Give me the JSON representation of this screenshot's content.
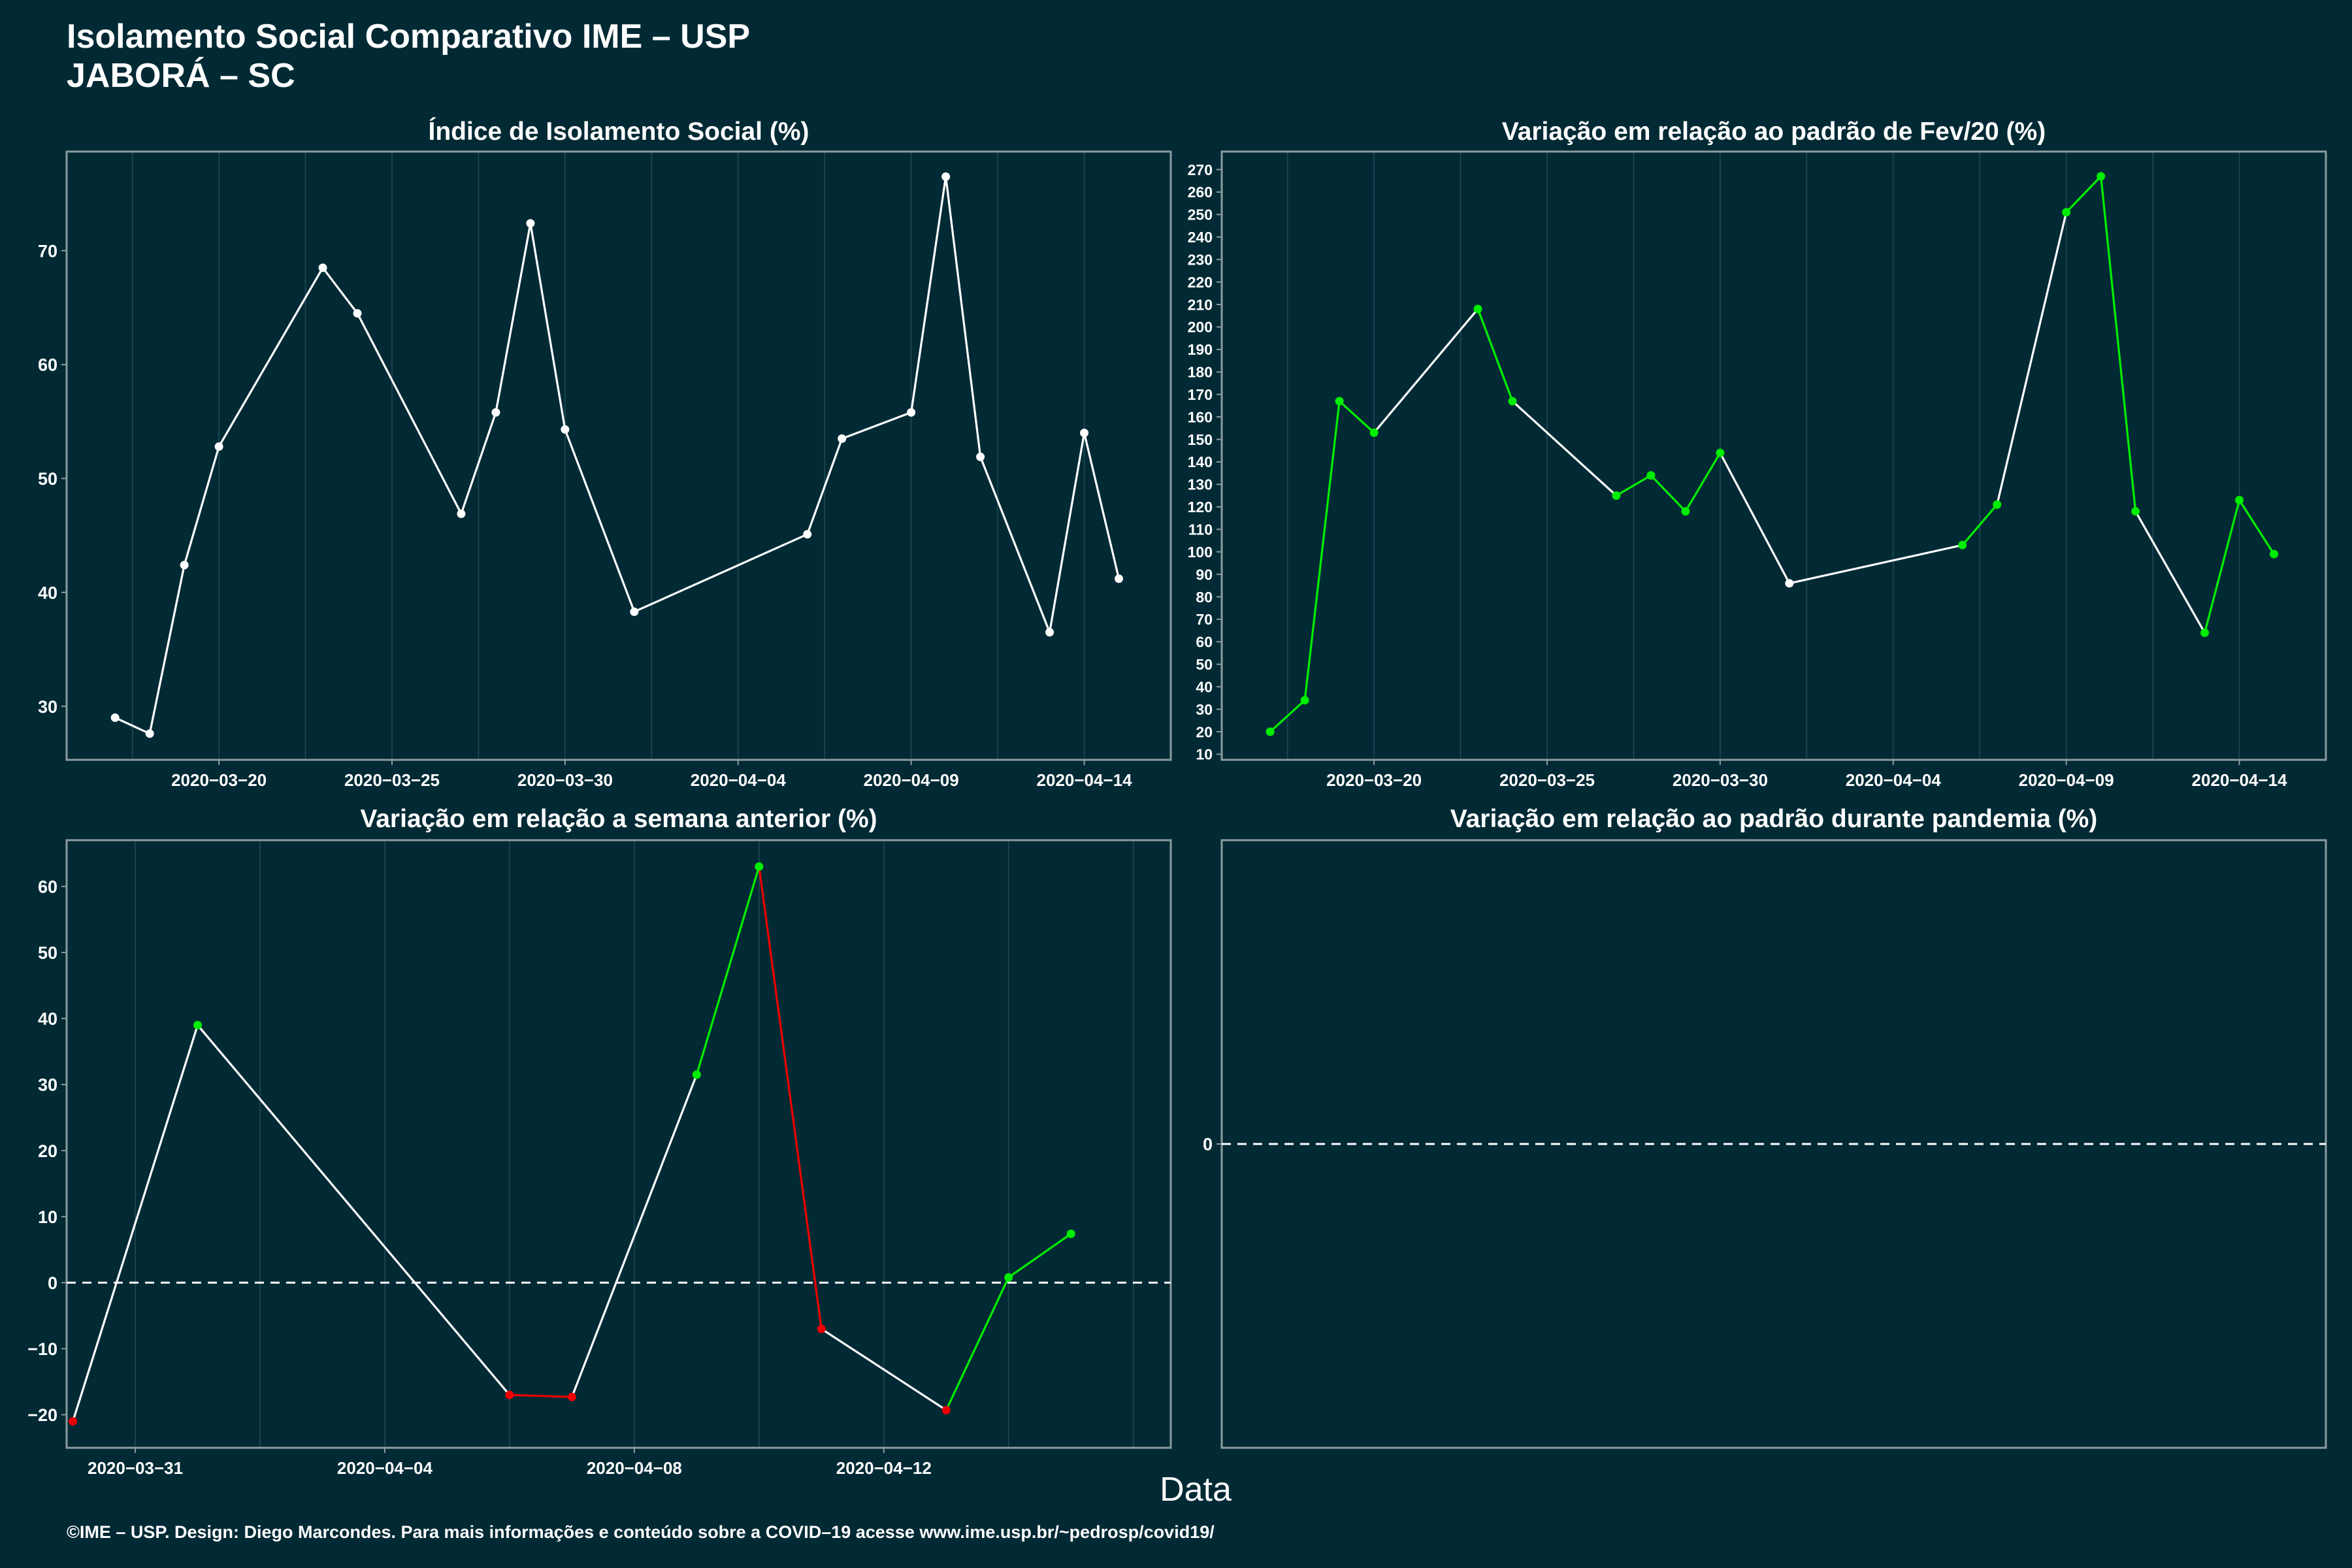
{
  "header": {
    "title_line1": "Isolamento Social Comparativo IME – USP",
    "title_line2": "JABORÁ – SC"
  },
  "footer": {
    "xlabel": "Data",
    "credits": "©IME – USP. Design: Diego Marcondes. Para mais informações e conteúdo sobre a COVID–19 acesse www.ime.usp.br/~pedrosp/covid19/"
  },
  "colors": {
    "background": "#022a35",
    "panel_border": "#8c9ca0",
    "grid": "#1c4450",
    "line": "#ffffff",
    "increase": "#00ee00",
    "decrease": "#ee0000"
  },
  "chart_data": [
    {
      "id": "isolation-index",
      "type": "line",
      "title": "Índice de Isolamento Social (%)",
      "x_type": "date",
      "x": [
        "2020-03-17",
        "2020-03-18",
        "2020-03-19",
        "2020-03-20",
        "2020-03-23",
        "2020-03-24",
        "2020-03-27",
        "2020-03-28",
        "2020-03-29",
        "2020-03-30",
        "2020-04-01",
        "2020-04-06",
        "2020-04-07",
        "2020-04-09",
        "2020-04-10",
        "2020-04-11",
        "2020-04-13",
        "2020-04-14",
        "2020-04-15"
      ],
      "y": [
        29.0,
        27.6,
        42.4,
        52.8,
        68.5,
        64.5,
        46.9,
        55.8,
        72.4,
        54.3,
        38.3,
        45.1,
        53.5,
        55.8,
        76.5,
        51.9,
        36.5,
        54.0,
        41.2
      ],
      "point_colors": [
        "white",
        "white",
        "white",
        "white",
        "white",
        "white",
        "white",
        "white",
        "white",
        "white",
        "white",
        "white",
        "white",
        "white",
        "white",
        "white",
        "white",
        "white",
        "white"
      ],
      "segment_colors": [
        "white",
        "white",
        "white",
        "white",
        "white",
        "white",
        "white",
        "white",
        "white",
        "white",
        "white",
        "white",
        "white",
        "white",
        "white",
        "white",
        "white",
        "white"
      ],
      "xlim": [
        "2020-03-15.6",
        "2020-04-16.5"
      ],
      "ylim": [
        25.3,
        78.7
      ],
      "xticks": [
        "2020-03-20",
        "2020-03-25",
        "2020-03-30",
        "2020-04-04",
        "2020-04-09",
        "2020-04-14"
      ],
      "yticks": [
        30,
        40,
        50,
        60,
        70
      ],
      "zero_line": false
    },
    {
      "id": "variation-feb",
      "type": "line",
      "title": "Variação em relação ao padrão de Fev/20 (%)",
      "x_type": "date",
      "x": [
        "2020-03-17",
        "2020-03-18",
        "2020-03-19",
        "2020-03-20",
        "2020-03-23",
        "2020-03-24",
        "2020-03-27",
        "2020-03-28",
        "2020-03-29",
        "2020-03-30",
        "2020-04-01",
        "2020-04-06",
        "2020-04-07",
        "2020-04-09",
        "2020-04-10",
        "2020-04-11",
        "2020-04-13",
        "2020-04-14",
        "2020-04-15"
      ],
      "y": [
        20,
        34,
        167,
        153,
        208,
        167,
        125,
        134,
        118,
        144,
        86,
        103,
        121,
        251,
        267,
        118,
        64,
        123,
        99
      ],
      "point_colors": [
        "green",
        "green",
        "green",
        "green",
        "green",
        "green",
        "green",
        "green",
        "green",
        "green",
        "white",
        "green",
        "green",
        "green",
        "green",
        "green",
        "green",
        "green",
        "green"
      ],
      "segment_colors": [
        "green",
        "green",
        "green",
        "white",
        "green",
        "white",
        "green",
        "green",
        "green",
        "white",
        "white",
        "green",
        "white",
        "green",
        "green",
        "white",
        "green",
        "green"
      ],
      "xlim": [
        "2020-03-15.6",
        "2020-04-16.5"
      ],
      "ylim": [
        7.5,
        278
      ],
      "xticks": [
        "2020-03-20",
        "2020-03-25",
        "2020-03-30",
        "2020-04-04",
        "2020-04-09",
        "2020-04-14"
      ],
      "yticks": [
        10,
        20,
        30,
        40,
        50,
        60,
        70,
        80,
        90,
        100,
        110,
        120,
        130,
        140,
        150,
        160,
        170,
        180,
        190,
        200,
        210,
        220,
        230,
        240,
        250,
        260,
        270
      ],
      "zero_line": false
    },
    {
      "id": "variation-week",
      "type": "line",
      "title": "Variação em relação a semana anterior (%)",
      "x_type": "date",
      "x": [
        "2020-03-30",
        "2020-04-01",
        "2020-04-06",
        "2020-04-07",
        "2020-04-09",
        "2020-04-10",
        "2020-04-11",
        "2020-04-13",
        "2020-04-14",
        "2020-04-15"
      ],
      "y": [
        -21,
        39,
        -17,
        -17.3,
        31.5,
        63,
        -7,
        -19.3,
        0.8,
        7.4
      ],
      "point_colors": [
        "red",
        "green",
        "red",
        "red",
        "green",
        "green",
        "red",
        "red",
        "green",
        "green"
      ],
      "segment_colors": [
        "white",
        "white",
        "red",
        "white",
        "green",
        "red",
        "white",
        "green",
        "green"
      ],
      "xlim": [
        "2020-03-29.9",
        "2020-04-16.6"
      ],
      "ylim": [
        -25,
        67
      ],
      "xticks": [
        "2020-03-31",
        "2020-04-04",
        "2020-04-08",
        "2020-04-12"
      ],
      "yticks": [
        -20,
        -10,
        0,
        10,
        20,
        30,
        40,
        50,
        60
      ],
      "zero_line": true
    },
    {
      "id": "variation-pandemic",
      "type": "line",
      "title": "Variação em relação ao padrão durante pandemia (%)",
      "x": [],
      "y": [],
      "yticks": [
        0
      ],
      "zero_line": true
    }
  ]
}
